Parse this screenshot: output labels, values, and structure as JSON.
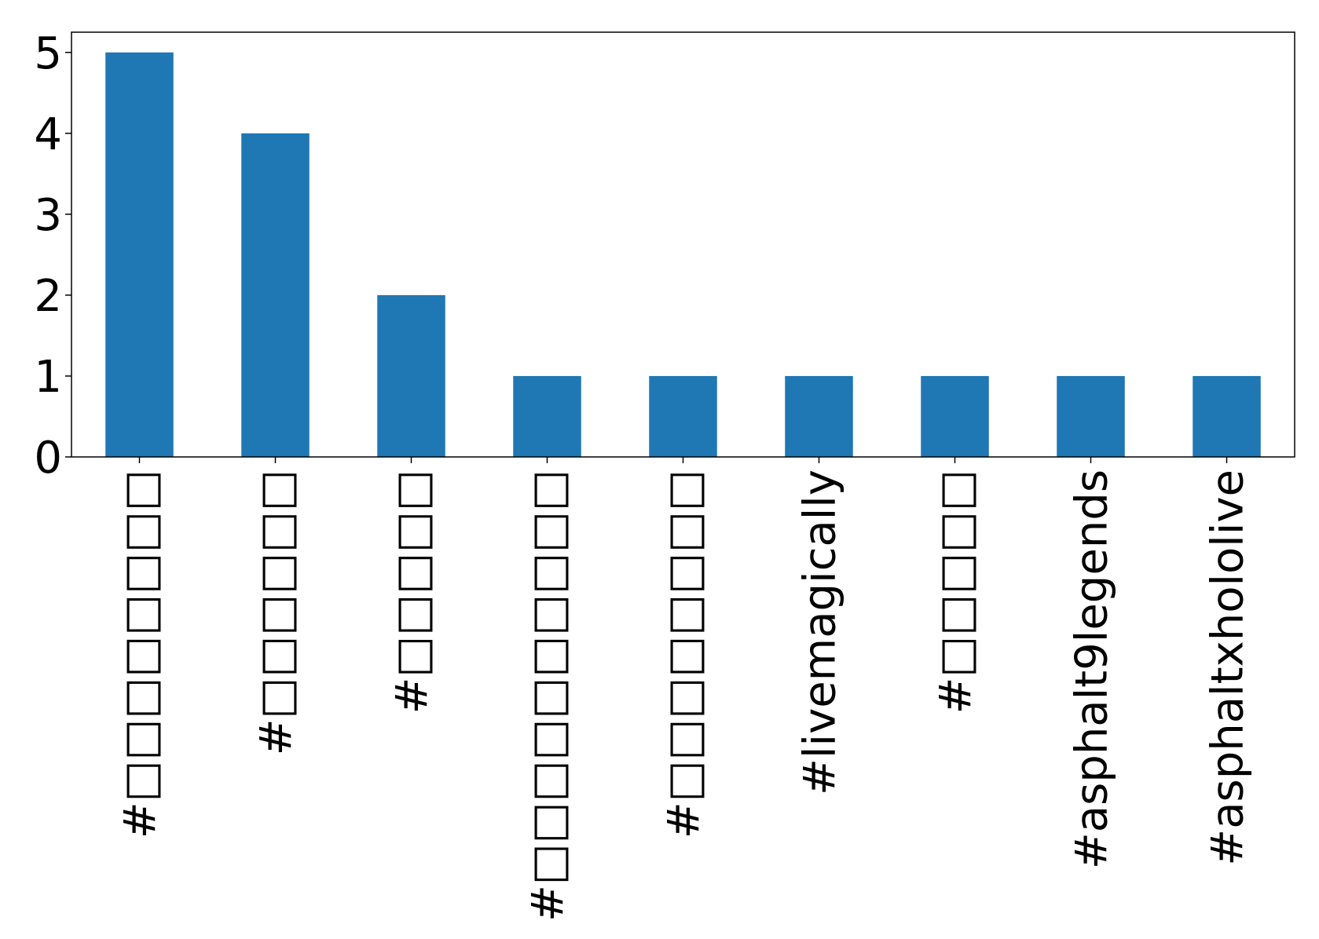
{
  "chart_data": {
    "type": "bar",
    "categories": [
      "#□□□□□□□□",
      "#□□□□□□",
      "#□□□□□",
      "#□□□□□□□□□□",
      "#□□□□□□□□",
      "#livemagically",
      "#□□□□□",
      "#asphalt9legends",
      "#asphaltxhololive"
    ],
    "values": [
      5,
      4,
      2,
      1,
      1,
      1,
      1,
      1,
      1
    ],
    "color": "#1f77b4",
    "ylim": [
      0,
      5.25
    ],
    "yticks": [
      0,
      1,
      2,
      3,
      4,
      5
    ],
    "grid": false
  }
}
